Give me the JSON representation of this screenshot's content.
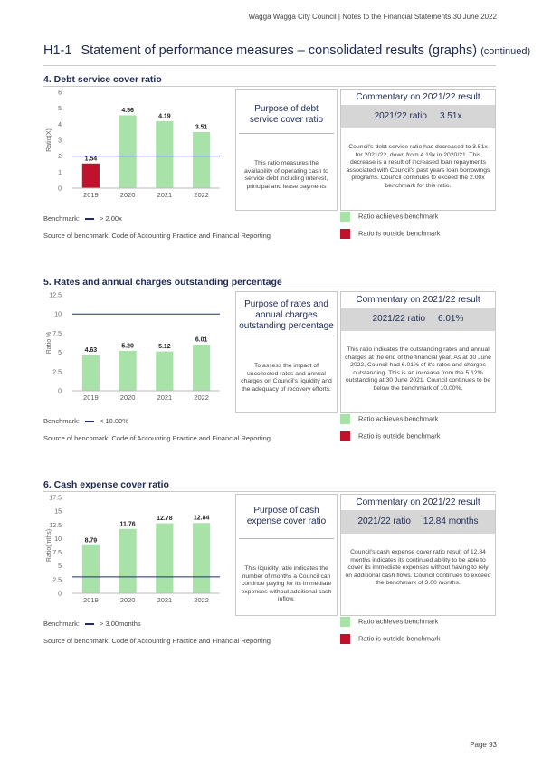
{
  "header": {
    "running": "Wagga Wagga City Council | Notes to the Financial Statements 30 June 2022",
    "code": "H1-1",
    "title": "Statement of performance measures – consolidated results (graphs)",
    "continued": "(continued)"
  },
  "colors": {
    "achieves": "#a8e2a8",
    "outside": "#c0112d",
    "benchmark_line": "#1c2a7a",
    "heading": "#1e2a55"
  },
  "sections": [
    {
      "title": "4. Debt service cover ratio",
      "purpose_title": "Purpose of debt service cover ratio",
      "purpose_text": "This ratio measures the availability of operating cash to service debt including interest, principal and lease payments",
      "commentary_title": "Commentary on 2021/22 result",
      "ratio_label": "2021/22 ratio",
      "ratio_value": "3.51x",
      "commentary_text": "Council's debt service ratio has decreased to 3.51x for 2021/22, down from 4.19x in 2020/21. This decrease is a result of increased loan repayments associated with Council's past years loan borrowings programs. Council continues to exceed the 2.00x benchmark for this ratio.",
      "benchmark_label": "Benchmark:",
      "benchmark_value": "> 2.00x",
      "source": "Source of benchmark: Code of Accounting Practice and Financial Reporting",
      "legend_achieve": "Ratio achieves benchmark",
      "legend_outside": "Ratio is outside benchmark"
    },
    {
      "title": "5. Rates and annual charges outstanding percentage",
      "purpose_title": "Purpose of rates and annual charges outstanding percentage",
      "purpose_text": "To assess the impact of uncollected rates and annual charges on Council's liquidity and the adequacy of recovery efforts.",
      "commentary_title": "Commentary on 2021/22 result",
      "ratio_label": "2021/22 ratio",
      "ratio_value": "6.01%",
      "commentary_text": "This ratio indicates the outstanding rates and annual charges at the end of the financial year. As at 30 June 2022, Council had 6.01% of it's rates and charges outstanding. This is an increase from the 5.12% outstanding at 30 June 2021. Council continues to be below the benchmark of 10.00%.",
      "benchmark_label": "Benchmark:",
      "benchmark_value": "< 10.00%",
      "source": "Source of benchmark: Code of Accounting Practice and Financial Reporting",
      "legend_achieve": "Ratio achieves benchmark",
      "legend_outside": "Ratio is outside benchmark"
    },
    {
      "title": "6. Cash expense cover ratio",
      "purpose_title": "Purpose of cash expense cover ratio",
      "purpose_text": "This liquidity ratio indicates the number of months a Council can continue paying for its immediate expenses without additional cash inflow.",
      "commentary_title": "Commentary on 2021/22 result",
      "ratio_label": "2021/22 ratio",
      "ratio_value": "12.84 months",
      "commentary_text": "Council's cash expense cover ratio result of 12.84 months indicates its continued ability to be able to cover its immediate expenses without having to rely on additional cash flows. Council continues to exceed the benchmark of 3.00 months.",
      "benchmark_label": "Benchmark:",
      "benchmark_value": "> 3.00months",
      "source": "Source of benchmark: Code of Accounting Practice and Financial Reporting",
      "legend_achieve": "Ratio achieves benchmark",
      "legend_outside": "Ratio is outside benchmark"
    }
  ],
  "chart_data": [
    {
      "type": "bar",
      "title": "4. Debt service cover ratio",
      "categories": [
        "2019",
        "2020",
        "2021",
        "2022"
      ],
      "values": [
        1.54,
        4.56,
        4.19,
        3.51
      ],
      "value_labels": [
        "1.54",
        "4.56",
        "4.19",
        "3.51"
      ],
      "status": [
        "outside",
        "achieves",
        "achieves",
        "achieves"
      ],
      "ylabel": "Ratio(X)",
      "ylim": [
        0,
        6
      ],
      "yticks": [
        0,
        1,
        2,
        3,
        4,
        5,
        6
      ],
      "ytick_labels": [
        "0",
        "1",
        "2",
        "3",
        "4",
        "5",
        "6"
      ],
      "benchmark": 2.0,
      "grid": false
    },
    {
      "type": "bar",
      "title": "5. Rates and annual charges outstanding percentage",
      "categories": [
        "2019",
        "2020",
        "2021",
        "2022"
      ],
      "values": [
        4.63,
        5.2,
        5.12,
        6.01
      ],
      "value_labels": [
        "4.63",
        "5.20",
        "5.12",
        "6.01"
      ],
      "status": [
        "achieves",
        "achieves",
        "achieves",
        "achieves"
      ],
      "ylabel": "Ratio %",
      "ylim": [
        0,
        12.5
      ],
      "yticks": [
        0,
        2.5,
        5,
        7.5,
        10,
        12.5
      ],
      "ytick_labels": [
        "0",
        "2.5",
        "5",
        "7.5",
        "10",
        "12.5"
      ],
      "benchmark": 10.0,
      "grid": false
    },
    {
      "type": "bar",
      "title": "6. Cash expense cover ratio",
      "categories": [
        "2019",
        "2020",
        "2021",
        "2022"
      ],
      "values": [
        8.79,
        11.76,
        12.78,
        12.84
      ],
      "value_labels": [
        "8.79",
        "11.76",
        "12.78",
        "12.84"
      ],
      "status": [
        "achieves",
        "achieves",
        "achieves",
        "achieves"
      ],
      "ylabel": "Ratio(mths)",
      "ylim": [
        0,
        17.5
      ],
      "yticks": [
        0,
        2.5,
        5,
        7.5,
        10,
        12.5,
        15,
        17.5
      ],
      "ytick_labels": [
        "0",
        "2.5",
        "5",
        "7.5",
        "10",
        "12.5",
        "15",
        "17.5"
      ],
      "benchmark": 3.0,
      "grid": false
    }
  ],
  "footer": {
    "page": "Page 93"
  }
}
